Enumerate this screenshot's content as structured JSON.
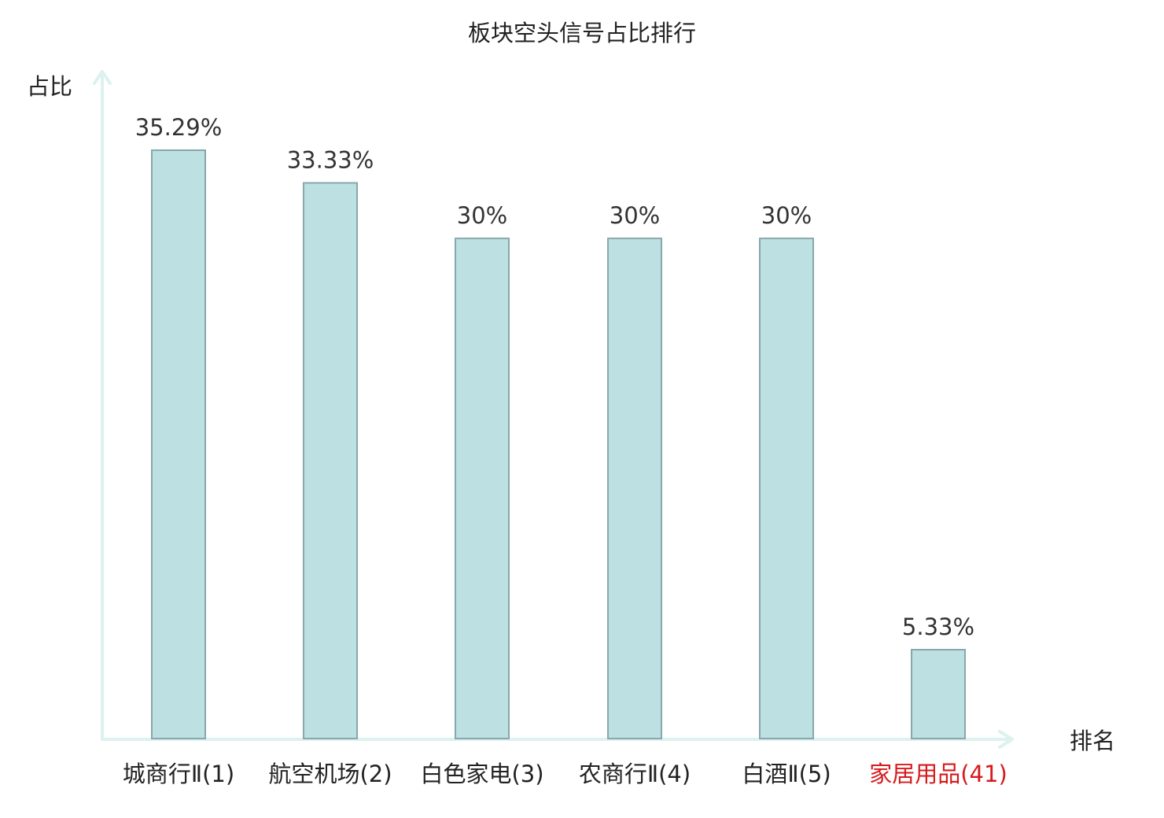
{
  "chart_data": {
    "type": "bar",
    "title": "板块空头信号占比排行",
    "ylabel": "占比",
    "xlabel": "排名",
    "categories": [
      "城商行Ⅱ(1)",
      "航空机场(2)",
      "白色家电(3)",
      "农商行Ⅱ(4)",
      "白酒Ⅱ(5)",
      "家居用品(41)"
    ],
    "values": [
      35.29,
      33.33,
      30,
      30,
      30,
      5.33
    ],
    "value_labels": [
      "35.29%",
      "33.33%",
      "30%",
      "30%",
      "30%",
      "5.33%"
    ],
    "highlight_index": 5,
    "colors": {
      "bar_fill": "#bde0e3",
      "bar_stroke": "#88a7aa",
      "axis": "#ddf1ef",
      "text": "#222222",
      "value_text": "#333333",
      "highlight_text": "#d7191c"
    },
    "ylim": [
      0,
      35.29
    ],
    "grid": false
  }
}
